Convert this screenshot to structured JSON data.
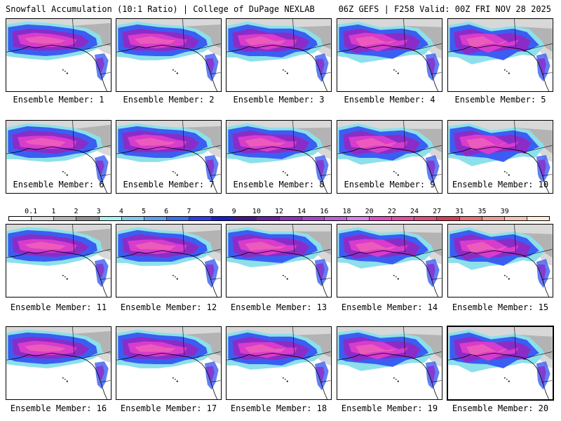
{
  "header": {
    "left_title": "Snowfall Accumulation (10:1 Ratio) | College of DuPage NEXLAB",
    "right_title": "06Z GEFS | F258 Valid: 00Z FRI NOV 28 2025"
  },
  "panels": [
    {
      "label": "Ensemble Member: 1"
    },
    {
      "label": "Ensemble Member: 2"
    },
    {
      "label": "Ensemble Member: 3"
    },
    {
      "label": "Ensemble Member: 4"
    },
    {
      "label": "Ensemble Member: 5"
    },
    {
      "label": "Ensemble Member: 6"
    },
    {
      "label": "Ensemble Member: 7"
    },
    {
      "label": "Ensemble Member: 8"
    },
    {
      "label": "Ensemble Member: 9"
    },
    {
      "label": "Ensemble Member: 10"
    },
    {
      "label": "Ensemble Member: 11"
    },
    {
      "label": "Ensemble Member: 12"
    },
    {
      "label": "Ensemble Member: 13"
    },
    {
      "label": "Ensemble Member: 14"
    },
    {
      "label": "Ensemble Member: 15"
    },
    {
      "label": "Ensemble Member: 16"
    },
    {
      "label": "Ensemble Member: 17"
    },
    {
      "label": "Ensemble Member: 18"
    },
    {
      "label": "Ensemble Member: 19"
    },
    {
      "label": "Ensemble Member: 20"
    }
  ],
  "scale": {
    "labels": [
      "0.1",
      "1",
      "2",
      "3",
      "4",
      "5",
      "6",
      "7",
      "8",
      "9",
      "10",
      "12",
      "14",
      "16",
      "18",
      "20",
      "22",
      "24",
      "27",
      "31",
      "35",
      "39"
    ],
    "colors": [
      "#ffffff",
      "#dcdcdc",
      "#b4b4b4",
      "#909090",
      "#a8f0f0",
      "#82c8ec",
      "#5a9ff0",
      "#3c6ef0",
      "#2b3cf0",
      "#1c1ccc",
      "#46148c",
      "#6a1ea8",
      "#8c32be",
      "#a646cc",
      "#c060d8",
      "#d880e6",
      "#e04cc0",
      "#e84aa0",
      "#e04c7c",
      "#d83c58",
      "#e87070",
      "#f09c8c",
      "#f6c4b0",
      "#fcebd8"
    ]
  },
  "map_colors": {
    "ocean": "#ffffff",
    "land": "#ffffff",
    "light_gray": "#d8d8d8",
    "mid_gray": "#a4a4a4",
    "cyan": "#8ce0ea",
    "blue": "#3a5ef2",
    "purple": "#8c2cc8",
    "magenta": "#d83ccc",
    "pink": "#f060b8",
    "coast": "#000000"
  }
}
